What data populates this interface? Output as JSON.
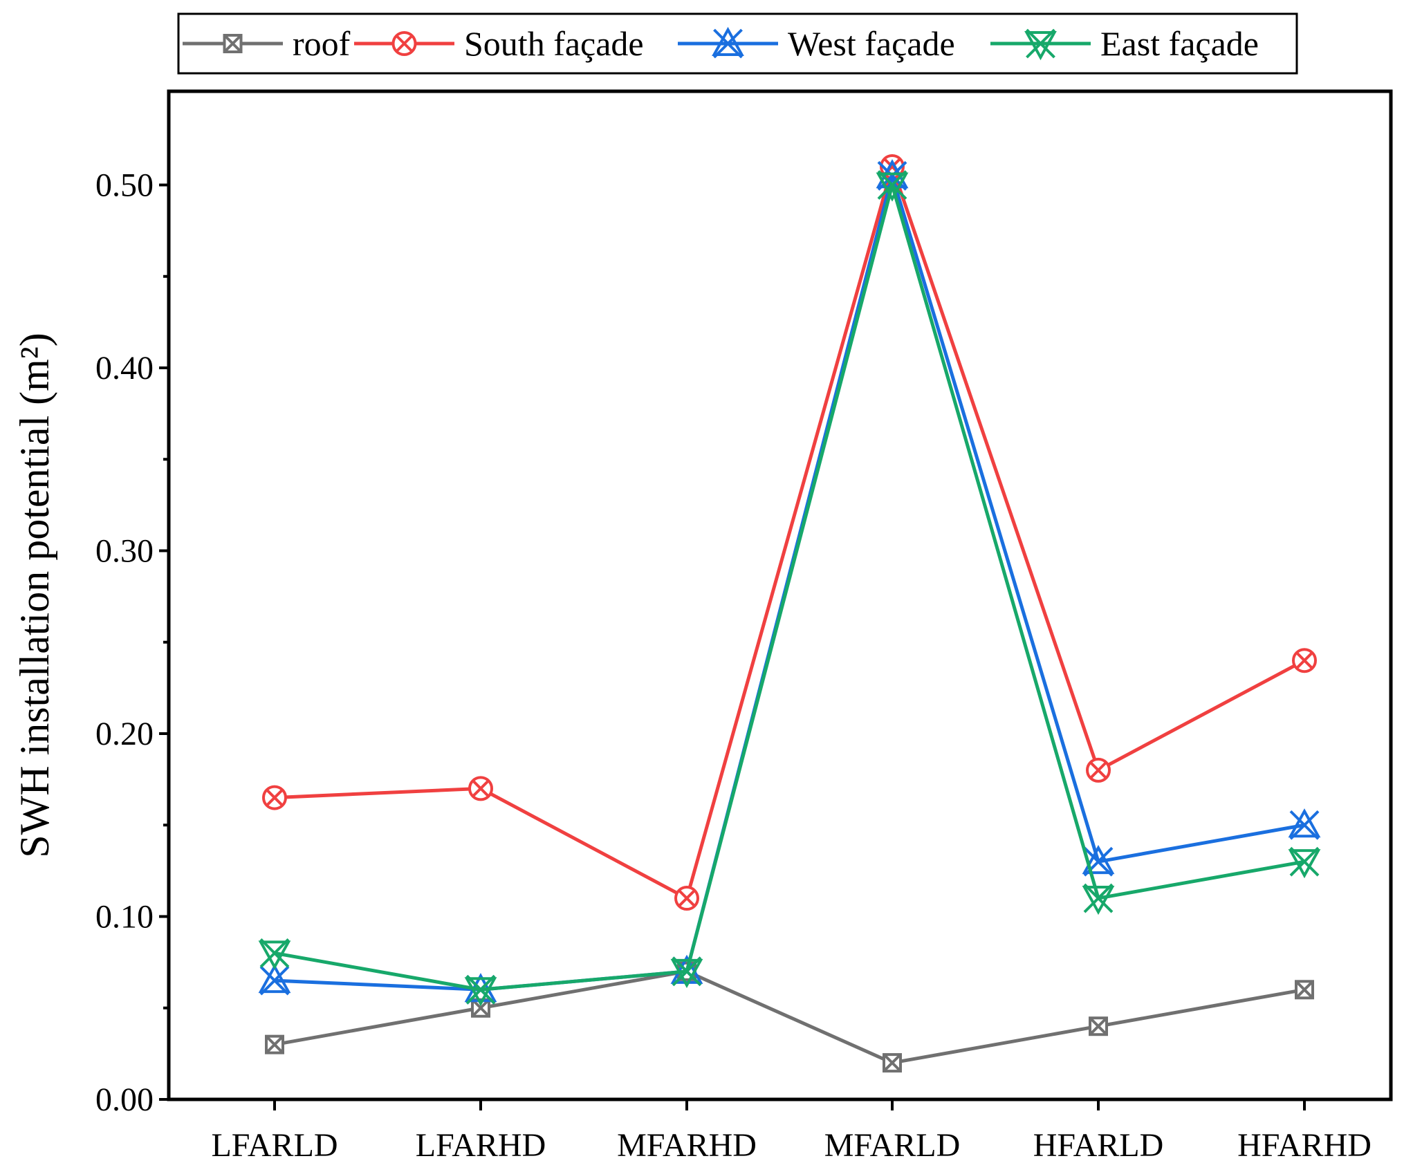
{
  "chart_data": {
    "type": "line",
    "title": "",
    "xlabel": "",
    "ylabel": "SWH installation potential (m²)",
    "categories": [
      "LFARLD",
      "LFARHD",
      "MFARHD",
      "MFARLD",
      "HFARLD",
      "HFARHD"
    ],
    "ylim": [
      0,
      0.545
    ],
    "yticks": [
      0.0,
      0.1,
      0.2,
      0.3,
      0.4,
      0.5
    ],
    "ytick_labels": [
      "0.00",
      "0.10",
      "0.20",
      "0.30",
      "0.40",
      "0.50"
    ],
    "legend_position": "top",
    "grid": false,
    "series": [
      {
        "name": "roof",
        "color": "#707070",
        "marker": "square-x",
        "values": [
          0.03,
          0.05,
          0.07,
          0.02,
          0.04,
          0.06
        ]
      },
      {
        "name": "South façade",
        "color": "#f04040",
        "marker": "circle-x",
        "values": [
          0.165,
          0.17,
          0.11,
          0.51,
          0.18,
          0.24
        ]
      },
      {
        "name": "West façade",
        "color": "#1a6fdf",
        "marker": "triangle-x",
        "values": [
          0.065,
          0.06,
          0.07,
          0.505,
          0.13,
          0.15
        ]
      },
      {
        "name": "East façade",
        "color": "#17a86a",
        "marker": "inverted-triangle-x",
        "values": [
          0.08,
          0.06,
          0.07,
          0.5,
          0.11,
          0.13
        ]
      }
    ]
  }
}
